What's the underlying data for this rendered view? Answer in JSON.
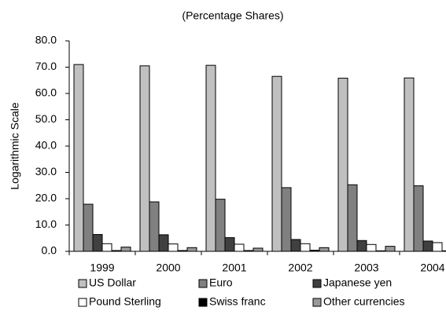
{
  "chart_data": {
    "type": "bar",
    "subtitle": "(Percentage Shares)",
    "y_label": "Logarithmic Scale",
    "categories": [
      "1999",
      "2000",
      "2001",
      "2002",
      "2003",
      "2004"
    ],
    "series": [
      {
        "name": "US Dollar",
        "color": "#c0c0c0",
        "values": [
          71.0,
          70.5,
          70.7,
          66.5,
          65.8,
          65.9
        ]
      },
      {
        "name": "Euro",
        "color": "#808080",
        "values": [
          17.9,
          18.8,
          19.8,
          24.2,
          25.3,
          24.9
        ]
      },
      {
        "name": "Japanese yen",
        "color": "#404040",
        "values": [
          6.4,
          6.3,
          5.2,
          4.5,
          4.1,
          3.9
        ]
      },
      {
        "name": "Pound Sterling",
        "color": "#ffffff",
        "values": [
          2.9,
          2.8,
          2.7,
          2.9,
          2.6,
          3.3
        ]
      },
      {
        "name": "Swiss franc",
        "color": "#000000",
        "values": [
          0.3,
          0.3,
          0.3,
          0.4,
          0.2,
          0.2
        ]
      },
      {
        "name": "Other currencies",
        "color": "#999999",
        "values": [
          1.6,
          1.4,
          1.2,
          1.4,
          1.9,
          1.8
        ]
      }
    ],
    "ylim": [
      0,
      80
    ],
    "yticks": [
      {
        "value": 0,
        "label": "0.0"
      },
      {
        "value": 10,
        "label": "10.0"
      },
      {
        "value": 20,
        "label": "20.0"
      },
      {
        "value": 30,
        "label": "30.0"
      },
      {
        "value": 40,
        "label": "40.0"
      },
      {
        "value": 50,
        "label": "50.0"
      },
      {
        "value": 60,
        "label": "60.0"
      },
      {
        "value": 70,
        "label": "70.0"
      },
      {
        "value": 80,
        "label": "80.0"
      }
    ],
    "grid": false
  }
}
